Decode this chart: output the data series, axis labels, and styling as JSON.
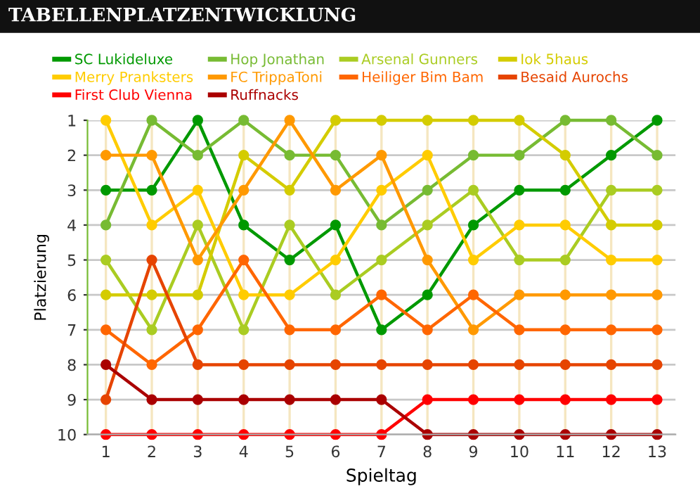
{
  "chart_data": {
    "type": "line",
    "title": "TABELLENPLATZENTWICKLUNG",
    "xlabel": "Spieltag",
    "ylabel": "Platzierung",
    "x": [
      1,
      2,
      3,
      4,
      5,
      6,
      7,
      8,
      9,
      10,
      11,
      12,
      13
    ],
    "xlim": [
      0.6,
      13.4
    ],
    "xticks": [
      1,
      2,
      3,
      4,
      5,
      6,
      7,
      8,
      9,
      10,
      11,
      12,
      13
    ],
    "ylim": [
      10,
      1
    ],
    "yticks": [
      1,
      2,
      3,
      4,
      5,
      6,
      7,
      8,
      9,
      10
    ],
    "grid": true,
    "legend": "top",
    "marker": "circle",
    "line_style": "solid",
    "series": [
      {
        "name": "SC Lukideluxe",
        "color": "#009900",
        "values": [
          3,
          3,
          1,
          4,
          5,
          4,
          7,
          6,
          4,
          3,
          3,
          2,
          1
        ]
      },
      {
        "name": "Hop Jonathan",
        "color": "#77bb33",
        "values": [
          4,
          1,
          2,
          1,
          2,
          2,
          4,
          3,
          2,
          2,
          1,
          1,
          2
        ]
      },
      {
        "name": "Arsenal Gunners",
        "color": "#aacc22",
        "values": [
          5,
          7,
          4,
          7,
          4,
          6,
          5,
          4,
          3,
          5,
          5,
          3,
          3
        ]
      },
      {
        "name": "Iok 5haus",
        "color": "#d4cc00",
        "values": [
          6,
          6,
          6,
          2,
          3,
          1,
          1,
          1,
          1,
          1,
          2,
          4,
          4
        ]
      },
      {
        "name": "Merry Pranksters",
        "color": "#ffcc00",
        "values": [
          1,
          4,
          3,
          6,
          6,
          5,
          3,
          2,
          5,
          4,
          4,
          5,
          5
        ]
      },
      {
        "name": "FC TrippaToni",
        "color": "#ff9900",
        "values": [
          2,
          2,
          5,
          3,
          1,
          3,
          2,
          5,
          7,
          6,
          6,
          6,
          6
        ]
      },
      {
        "name": "Heiliger Bim Bam",
        "color": "#ff6600",
        "values": [
          7,
          8,
          7,
          5,
          7,
          7,
          6,
          7,
          6,
          7,
          7,
          7,
          7
        ]
      },
      {
        "name": "Besaid Aurochs",
        "color": "#e64400",
        "values": [
          9,
          5,
          8,
          8,
          8,
          8,
          8,
          8,
          8,
          8,
          8,
          8,
          8
        ]
      },
      {
        "name": "First Club Vienna",
        "color": "#ff0000",
        "values": [
          10,
          10,
          10,
          10,
          10,
          10,
          10,
          9,
          9,
          9,
          9,
          9,
          9
        ]
      },
      {
        "name": "Ruffnacks",
        "color": "#aa0000",
        "values": [
          8,
          9,
          9,
          9,
          9,
          9,
          9,
          10,
          10,
          10,
          10,
          10,
          10
        ]
      }
    ]
  }
}
